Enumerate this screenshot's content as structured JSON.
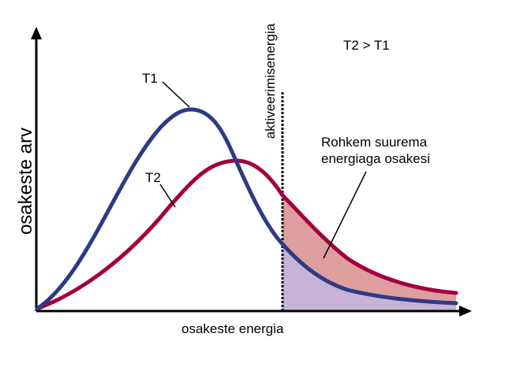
{
  "figure": {
    "y_axis_label": "osakeste arv",
    "x_axis_label": "osakeste energia",
    "activation_label": "aktiveerimisenergia",
    "comparison_label": "T2 > T1",
    "curve_labels": {
      "t1": "T1",
      "t2": "T2"
    },
    "annotation_lines": [
      "Rohkem suurema",
      "energiaga osakesi"
    ],
    "colors": {
      "t1_curve": "#2e3a85",
      "t2_curve": "#a3003f",
      "t2_area": "#dd9e9e",
      "t1_area": "#c7b3d6",
      "axis": "#000000"
    }
  }
}
